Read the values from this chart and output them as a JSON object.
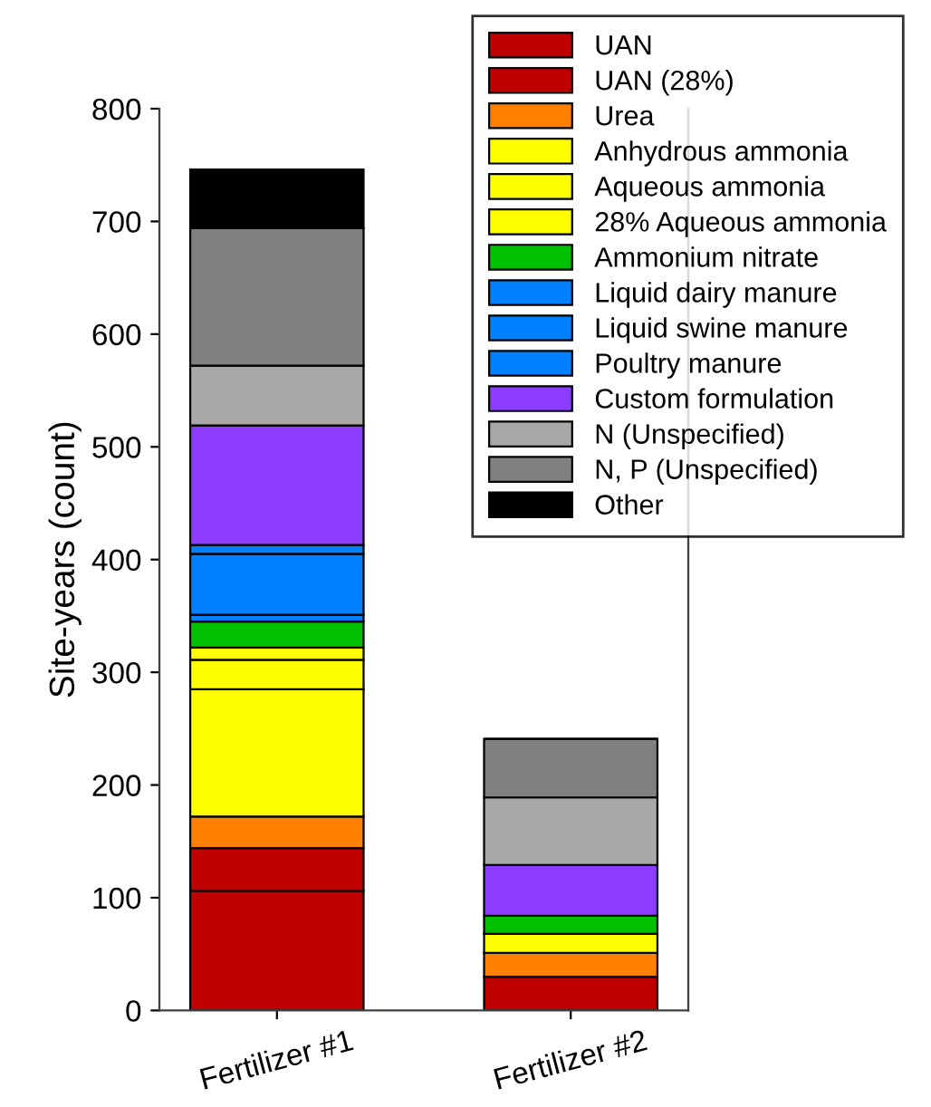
{
  "chart_data": {
    "type": "bar",
    "stacked": true,
    "ylabel": "Site-years (count)",
    "categories": [
      "Fertilizer #1",
      "Fertilizer #2"
    ],
    "ylim": [
      0,
      800
    ],
    "yticks": [
      0,
      100,
      200,
      300,
      400,
      500,
      600,
      700,
      800
    ],
    "grid": false,
    "legend": "top right",
    "series": [
      {
        "name": "UAN",
        "color": "#c00000",
        "values": [
          106,
          30
        ]
      },
      {
        "name": "UAN (28%)",
        "color": "#c00000",
        "values": [
          38,
          0
        ]
      },
      {
        "name": "Urea",
        "color": "#ff8000",
        "values": [
          28,
          21
        ]
      },
      {
        "name": "Anhydrous ammonia",
        "color": "#ffff00",
        "values": [
          113,
          17
        ]
      },
      {
        "name": "Aqueous ammonia",
        "color": "#ffff00",
        "values": [
          26,
          0
        ]
      },
      {
        "name": "28% Aqueous ammonia",
        "color": "#ffff00",
        "values": [
          11,
          0
        ]
      },
      {
        "name": "Ammonium nitrate",
        "color": "#00c000",
        "values": [
          23,
          16
        ]
      },
      {
        "name": "Liquid dairy manure",
        "color": "#0080ff",
        "values": [
          6,
          0
        ]
      },
      {
        "name": "Liquid swine manure",
        "color": "#0080ff",
        "values": [
          54,
          0
        ]
      },
      {
        "name": "Poultry manure",
        "color": "#0080ff",
        "values": [
          8,
          0
        ]
      },
      {
        "name": "Custom formulation",
        "color": "#8c3cff",
        "values": [
          106,
          45
        ]
      },
      {
        "name": "N (Unspecified)",
        "color": "#a8a8a8",
        "values": [
          53,
          60
        ]
      },
      {
        "name": "N, P (Unspecified)",
        "color": "#808080",
        "values": [
          122,
          52
        ]
      },
      {
        "name": "Other",
        "color": "#000000",
        "values": [
          52,
          0
        ]
      }
    ]
  }
}
